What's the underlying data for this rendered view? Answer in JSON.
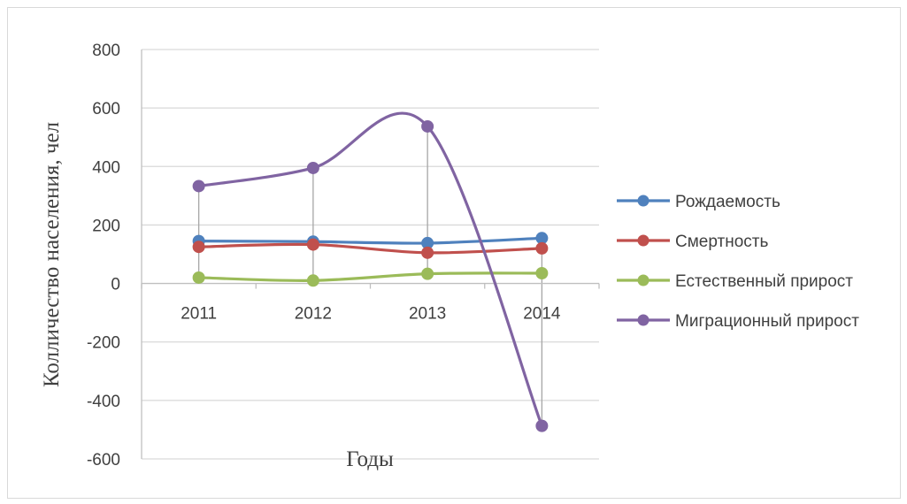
{
  "chart_data": {
    "type": "line",
    "title": "",
    "xlabel": "Годы",
    "ylabel": "Колличество населения, чел",
    "categories": [
      "2011",
      "2012",
      "2013",
      "2014"
    ],
    "ylim": [
      -600,
      800
    ],
    "yticks": [
      800,
      600,
      400,
      200,
      0,
      -200,
      -400,
      -600
    ],
    "grid": true,
    "smooth": true,
    "drop_lines": true,
    "legend_position": "right",
    "series": [
      {
        "name": "Рождаемость",
        "color": "#4f81bd",
        "values": [
          145,
          143,
          138,
          155
        ]
      },
      {
        "name": "Смертность",
        "color": "#c0504d",
        "values": [
          125,
          133,
          105,
          120
        ]
      },
      {
        "name": "Естественный прирост",
        "color": "#9bbb59",
        "values": [
          20,
          10,
          33,
          35
        ]
      },
      {
        "name": "Миграционный прирост",
        "color": "#8064a2",
        "values": [
          333,
          395,
          537,
          -487
        ]
      }
    ]
  }
}
